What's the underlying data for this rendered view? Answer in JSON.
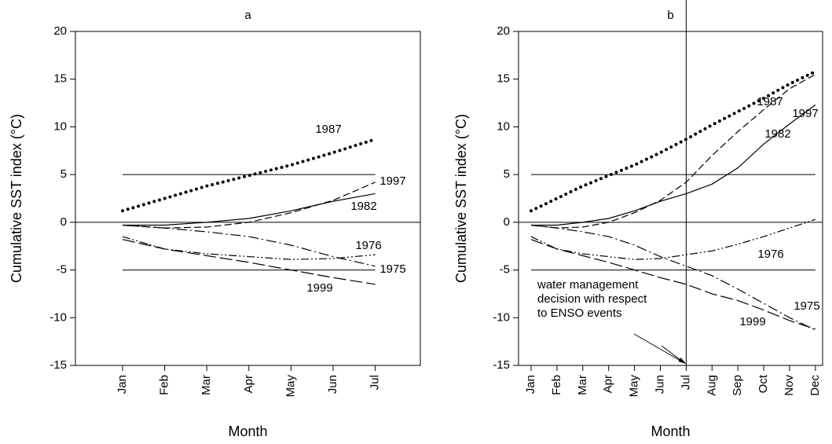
{
  "chart_data": [
    {
      "type": "line",
      "title": "a",
      "x_label": "Month",
      "y_label": "Cumulative SST index (°C)",
      "categories": [
        "Jan",
        "Feb",
        "Mar",
        "Apr",
        "May",
        "Jun",
        "Jul"
      ],
      "ylim": [
        -15,
        20
      ],
      "yticks": [
        -15,
        -10,
        -5,
        0,
        5,
        10,
        15,
        20
      ],
      "hlines": [
        5,
        -5
      ],
      "zero_line": true,
      "series": [
        {
          "name": "1987",
          "color": "#000000",
          "style": "dotted",
          "values": [
            1.2,
            2.5,
            3.8,
            4.9,
            6.0,
            7.3,
            8.7
          ]
        },
        {
          "name": "1997",
          "color": "#000000",
          "style": "dashed",
          "values": [
            -0.3,
            -0.6,
            -0.5,
            0,
            1.0,
            2.3,
            4.2
          ]
        },
        {
          "name": "1982",
          "color": "#000000",
          "style": "solid",
          "values": [
            -0.3,
            -0.3,
            0,
            0.4,
            1.2,
            2.2,
            3.0
          ]
        },
        {
          "name": "1976",
          "color": "#000000",
          "style": "dash-dot-dot",
          "values": [
            -1.5,
            -2.8,
            -3.3,
            -3.6,
            -3.9,
            -3.8,
            -3.4
          ]
        },
        {
          "name": "1975",
          "color": "#000000",
          "style": "dash-dot",
          "values": [
            -0.3,
            -0.6,
            -1.0,
            -1.5,
            -2.4,
            -3.6,
            -4.6
          ]
        },
        {
          "name": "1999",
          "color": "#000000",
          "style": "long-dash",
          "values": [
            -1.8,
            -2.8,
            -3.5,
            -4.2,
            -5.0,
            -5.8,
            -6.5
          ]
        }
      ]
    },
    {
      "type": "line",
      "title": "b",
      "x_label": "Month",
      "y_label": "Cumulative SST index (°C)",
      "categories": [
        "Jan",
        "Feb",
        "Mar",
        "Apr",
        "May",
        "Jun",
        "Jul",
        "Aug",
        "Sep",
        "Oct",
        "Nov",
        "Dec"
      ],
      "ylim": [
        -15,
        20
      ],
      "yticks": [
        -15,
        -10,
        -5,
        0,
        5,
        10,
        15,
        20
      ],
      "hlines": [
        5,
        -5
      ],
      "zero_line": true,
      "vline_at": "Jul",
      "annotation": [
        "water management",
        "decision with respect",
        "to ENSO events"
      ],
      "series": [
        {
          "name": "1987",
          "color": "#000000",
          "style": "dotted",
          "values": [
            1.2,
            2.5,
            3.8,
            4.9,
            6.0,
            7.3,
            8.7,
            10.2,
            11.6,
            13.0,
            14.5,
            15.8
          ]
        },
        {
          "name": "1997",
          "color": "#000000",
          "style": "dashed",
          "values": [
            -0.3,
            -0.6,
            -0.5,
            0,
            1.0,
            2.3,
            4.2,
            7.0,
            9.5,
            11.8,
            14.0,
            15.5
          ]
        },
        {
          "name": "1982",
          "color": "#000000",
          "style": "solid",
          "values": [
            -0.3,
            -0.3,
            0,
            0.4,
            1.2,
            2.2,
            3.0,
            4.0,
            5.7,
            8.2,
            10.3,
            12.3
          ]
        },
        {
          "name": "1976",
          "color": "#000000",
          "style": "dash-dot-dot",
          "values": [
            -1.5,
            -2.8,
            -3.3,
            -3.6,
            -3.9,
            -3.8,
            -3.4,
            -3.0,
            -2.3,
            -1.5,
            -0.6,
            0.3
          ]
        },
        {
          "name": "1975",
          "color": "#000000",
          "style": "dash-dot",
          "values": [
            -0.3,
            -0.6,
            -1.0,
            -1.5,
            -2.4,
            -3.6,
            -4.6,
            -5.6,
            -7.0,
            -8.5,
            -10.0,
            -11.3
          ]
        },
        {
          "name": "1999",
          "color": "#000000",
          "style": "long-dash",
          "values": [
            -1.8,
            -2.8,
            -3.5,
            -4.2,
            -5.0,
            -5.8,
            -6.5,
            -7.5,
            -8.2,
            -9.2,
            -10.3,
            -11.2
          ]
        }
      ]
    }
  ]
}
